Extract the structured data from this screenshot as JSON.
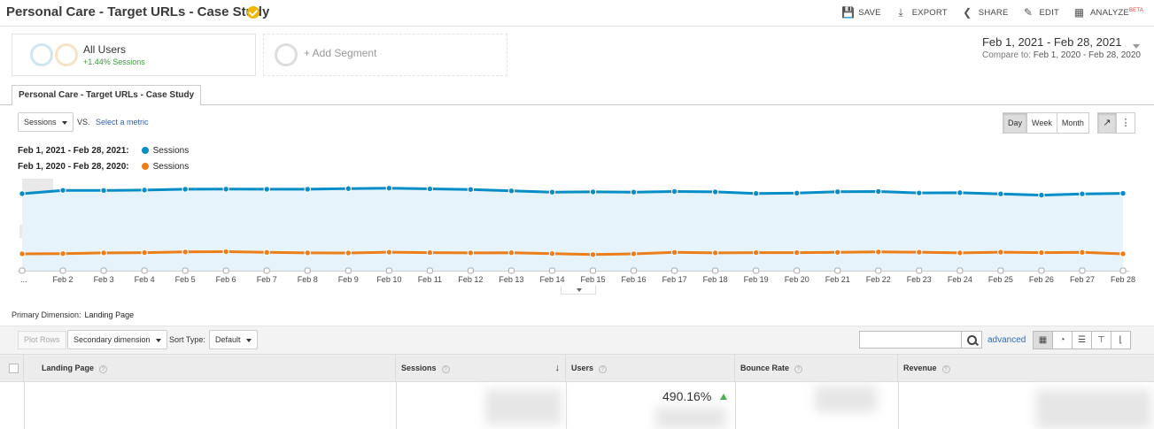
{
  "header": {
    "title": "Personal Care - Target URLs - Case Study",
    "actions": [
      {
        "label": "SAVE",
        "icon": "save-icon"
      },
      {
        "label": "EXPORT",
        "icon": "export-icon"
      },
      {
        "label": "SHARE",
        "icon": "share-icon"
      },
      {
        "label": "EDIT",
        "icon": "pencil-icon"
      },
      {
        "label": "ANALYZE",
        "icon": "analyze-icon",
        "badge": "BETA"
      }
    ]
  },
  "segments": {
    "all_users": {
      "name": "All Users",
      "sub": "+1.44% Sessions"
    },
    "add_label": "+ Add Segment"
  },
  "date_range": {
    "current": "Feb 1, 2021 - Feb 28, 2021",
    "compare_label": "Compare to:",
    "compare": "Feb 1, 2020 - Feb 28, 2020"
  },
  "tab": {
    "label": "Personal Care - Target URLs - Case Study"
  },
  "chart_controls": {
    "metric": "Sessions",
    "vs": "VS.",
    "select_metric": "Select a metric",
    "granularity": [
      "Day",
      "Week",
      "Month"
    ],
    "active_granularity": "Day"
  },
  "legend": [
    {
      "range": "Feb 1, 2021 - Feb 28, 2021:",
      "series": "Sessions",
      "color": "#058dc7"
    },
    {
      "range": "Feb 1, 2020 - Feb 28, 2020:",
      "series": "Sessions",
      "color": "#ed7e17"
    }
  ],
  "chart_data": {
    "type": "line",
    "x": [
      "...",
      "Feb 2",
      "Feb 3",
      "Feb 4",
      "Feb 5",
      "Feb 6",
      "Feb 7",
      "Feb 8",
      "Feb 9",
      "Feb 10",
      "Feb 11",
      "Feb 12",
      "Feb 13",
      "Feb 14",
      "Feb 15",
      "Feb 16",
      "Feb 17",
      "Feb 18",
      "Feb 19",
      "Feb 20",
      "Feb 21",
      "Feb 22",
      "Feb 23",
      "Feb 24",
      "Feb 25",
      "Feb 26",
      "Feb 27",
      "Feb 28"
    ],
    "series": [
      {
        "name": "Feb 1, 2021 - Feb 28, 2021: Sessions",
        "color": "#058dc7",
        "area": true,
        "values": [
          40,
          68,
          67,
          70,
          77,
          78,
          77,
          77,
          82,
          86,
          80,
          75,
          63,
          53,
          55,
          53,
          58,
          55,
          42,
          45,
          56,
          58,
          46,
          48,
          38,
          28,
          38,
          43
        ]
      },
      {
        "name": "Feb 1, 2020 - Feb 28, 2020: Sessions",
        "color": "#ed7e17",
        "area": false,
        "values": [
          -460,
          -458,
          -452,
          -450,
          -444,
          -442,
          -448,
          -452,
          -453,
          -446,
          -450,
          -452,
          -451,
          -458,
          -466,
          -460,
          -448,
          -452,
          -450,
          -450,
          -448,
          -444,
          -446,
          -452,
          -446,
          -450,
          -448,
          -460
        ]
      }
    ],
    "ylim": [
      -600,
      150
    ],
    "grid": true,
    "y_tick_labels_hidden": true
  },
  "table": {
    "primary_dimension_label": "Primary Dimension:",
    "primary_dimension_value": "Landing Page",
    "plot_rows": "Plot Rows",
    "secondary_dimension": "Secondary dimension",
    "sort_type_label": "Sort Type:",
    "sort_type_value": "Default",
    "advanced": "advanced",
    "headers": [
      "Landing Page",
      "Sessions",
      "Users",
      "Bounce Rate",
      "Revenue"
    ],
    "row": {
      "users_change": "490.16%"
    }
  }
}
